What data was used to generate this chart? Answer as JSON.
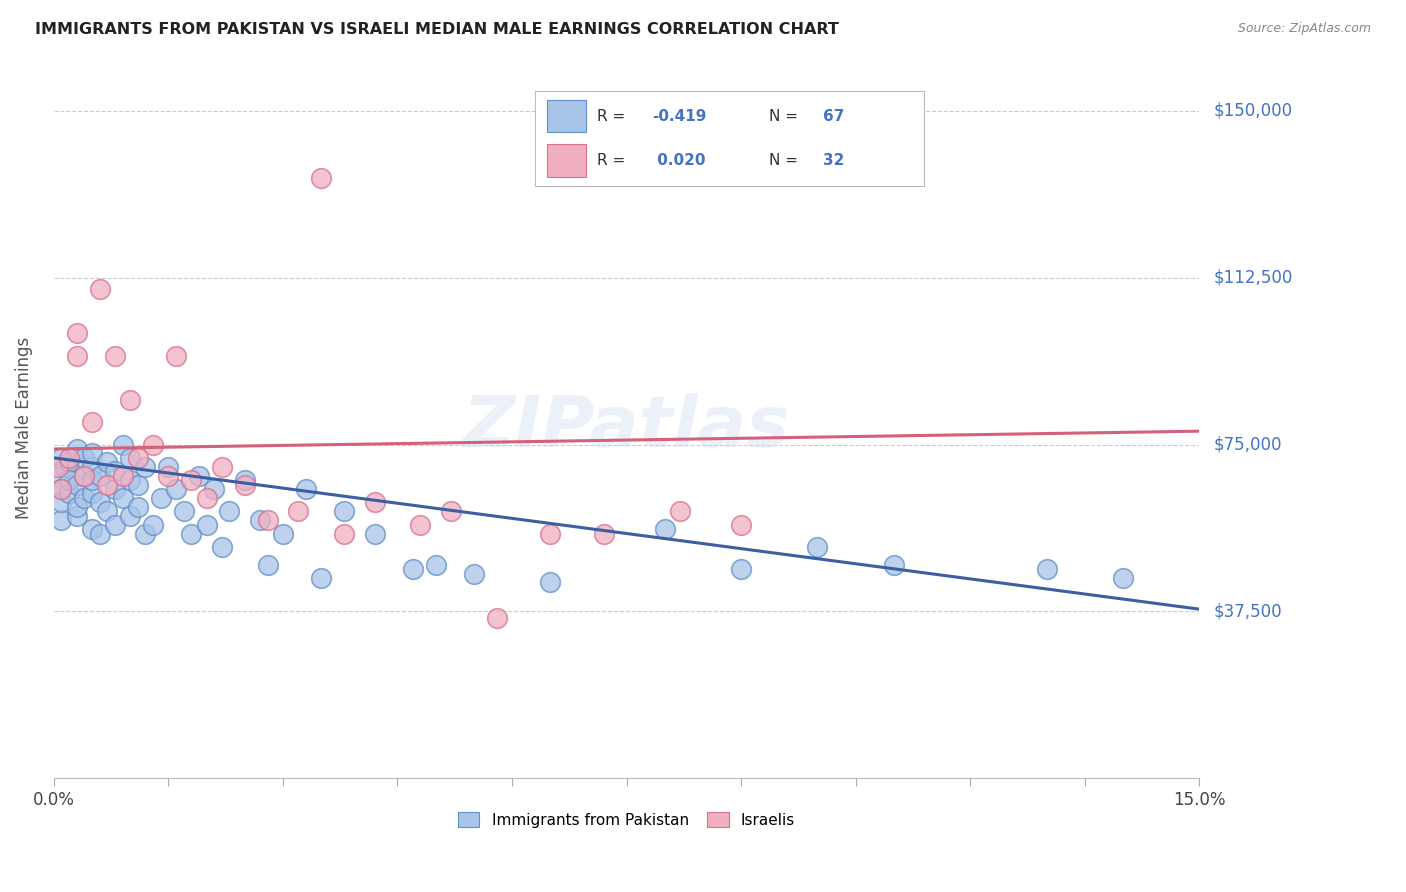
{
  "title": "IMMIGRANTS FROM PAKISTAN VS ISRAELI MEDIAN MALE EARNINGS CORRELATION CHART",
  "source": "Source: ZipAtlas.com",
  "ylabel": "Median Male Earnings",
  "yticks": [
    0,
    37500,
    75000,
    112500,
    150000
  ],
  "ytick_labels": [
    "",
    "$37,500",
    "$75,000",
    "$112,500",
    "$150,000"
  ],
  "xlim": [
    0.0,
    0.15
  ],
  "ylim": [
    0,
    157500
  ],
  "blue_line_color": "#3c5fa3",
  "pink_line_color": "#d4607a",
  "watermark": "ZIPatlas",
  "background_color": "#ffffff",
  "grid_color": "#cccccc",
  "scatter_blue_fill": "#a8c4e8",
  "scatter_blue_edge": "#6090c8",
  "scatter_pink_fill": "#f0b0c0",
  "scatter_pink_edge": "#d87090",
  "blue_r": "-0.419",
  "blue_n": "67",
  "pink_r": "0.020",
  "pink_n": "32",
  "blue_x": [
    0.0005,
    0.001,
    0.001,
    0.001,
    0.001,
    0.0015,
    0.002,
    0.002,
    0.002,
    0.003,
    0.003,
    0.003,
    0.003,
    0.004,
    0.004,
    0.004,
    0.005,
    0.005,
    0.005,
    0.005,
    0.005,
    0.006,
    0.006,
    0.006,
    0.007,
    0.007,
    0.008,
    0.008,
    0.008,
    0.009,
    0.009,
    0.01,
    0.01,
    0.01,
    0.011,
    0.011,
    0.012,
    0.012,
    0.013,
    0.014,
    0.015,
    0.016,
    0.017,
    0.018,
    0.019,
    0.02,
    0.021,
    0.022,
    0.023,
    0.025,
    0.027,
    0.028,
    0.03,
    0.033,
    0.035,
    0.038,
    0.042,
    0.047,
    0.05,
    0.055,
    0.065,
    0.08,
    0.09,
    0.1,
    0.11,
    0.13,
    0.14
  ],
  "blue_y": [
    68000,
    72000,
    65000,
    58000,
    62000,
    70000,
    64000,
    71000,
    67000,
    59000,
    66000,
    74000,
    61000,
    68000,
    63000,
    72000,
    56000,
    64000,
    70000,
    67000,
    73000,
    55000,
    68000,
    62000,
    60000,
    71000,
    57000,
    65000,
    69000,
    63000,
    75000,
    59000,
    67000,
    72000,
    61000,
    66000,
    55000,
    70000,
    57000,
    63000,
    70000,
    65000,
    60000,
    55000,
    68000,
    57000,
    65000,
    52000,
    60000,
    67000,
    58000,
    48000,
    55000,
    65000,
    45000,
    60000,
    55000,
    47000,
    48000,
    46000,
    44000,
    56000,
    47000,
    52000,
    48000,
    47000,
    45000
  ],
  "pink_x": [
    0.0005,
    0.001,
    0.002,
    0.003,
    0.003,
    0.004,
    0.005,
    0.006,
    0.007,
    0.008,
    0.009,
    0.01,
    0.011,
    0.013,
    0.015,
    0.016,
    0.018,
    0.02,
    0.022,
    0.025,
    0.028,
    0.032,
    0.035,
    0.038,
    0.042,
    0.048,
    0.052,
    0.058,
    0.065,
    0.072,
    0.082,
    0.09
  ],
  "pink_y": [
    70000,
    65000,
    72000,
    95000,
    100000,
    68000,
    80000,
    110000,
    66000,
    95000,
    68000,
    85000,
    72000,
    75000,
    68000,
    95000,
    67000,
    63000,
    70000,
    66000,
    58000,
    60000,
    135000,
    55000,
    62000,
    57000,
    60000,
    36000,
    55000,
    55000,
    60000,
    57000
  ],
  "blue_trend_x": [
    0.0,
    0.15
  ],
  "blue_trend_y": [
    72000,
    38000
  ],
  "pink_trend_x": [
    0.0,
    0.15
  ],
  "pink_trend_y": [
    74000,
    78000
  ]
}
